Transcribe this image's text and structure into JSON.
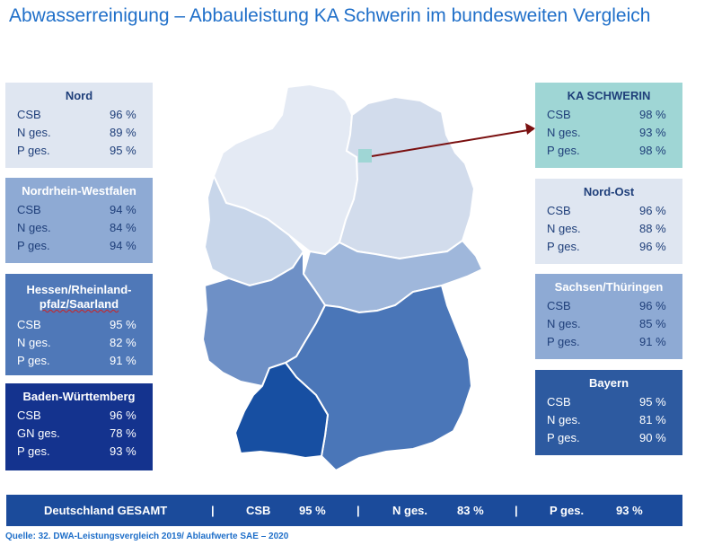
{
  "title": "Abwasserreinigung – Abbauleistung KA Schwerin im bundesweiten Vergleich",
  "regions": {
    "nord": {
      "name": "Nord",
      "rows": [
        {
          "k": "CSB",
          "v": "96 %"
        },
        {
          "k": "N ges.",
          "v": "89 %"
        },
        {
          "k": "P ges.",
          "v": "95 %"
        }
      ]
    },
    "nrw": {
      "name": "Nordrhein-Westfalen",
      "rows": [
        {
          "k": "CSB",
          "v": "94 %"
        },
        {
          "k": "N ges.",
          "v": "84 %"
        },
        {
          "k": "P ges.",
          "v": "94 %"
        }
      ]
    },
    "hessen": {
      "name_line1": "Hessen/Rheinland-",
      "name_line2": "pfalz/Saarland",
      "rows": [
        {
          "k": "CSB",
          "v": "95 %"
        },
        {
          "k": "N ges.",
          "v": "82 %"
        },
        {
          "k": "P ges.",
          "v": "91 %"
        }
      ]
    },
    "bw": {
      "name": "Baden-Württemberg",
      "rows": [
        {
          "k": "CSB",
          "v": "96 %"
        },
        {
          "k": "GN ges.",
          "v": "78 %"
        },
        {
          "k": "P ges.",
          "v": "93 %"
        }
      ]
    },
    "schwerin": {
      "name": "KA SCHWERIN",
      "rows": [
        {
          "k": "CSB",
          "v": "98 %"
        },
        {
          "k": "N ges.",
          "v": "93 %"
        },
        {
          "k": "P ges.",
          "v": "98 %"
        }
      ]
    },
    "nordost": {
      "name": "Nord-Ost",
      "rows": [
        {
          "k": "CSB",
          "v": "96 %"
        },
        {
          "k": "N ges.",
          "v": "88 %"
        },
        {
          "k": "P ges.",
          "v": "96 %"
        }
      ]
    },
    "sachsen": {
      "name": "Sachsen/Thüringen",
      "rows": [
        {
          "k": "CSB",
          "v": "96 %"
        },
        {
          "k": "N ges.",
          "v": "85 %"
        },
        {
          "k": "P ges.",
          "v": "91 %"
        }
      ]
    },
    "bayern": {
      "name": "Bayern",
      "rows": [
        {
          "k": "CSB",
          "v": "95 %"
        },
        {
          "k": "N ges.",
          "v": "81 %"
        },
        {
          "k": "P ges.",
          "v": "90 %"
        }
      ]
    }
  },
  "total": {
    "label": "Deutschland GESAMT",
    "sep": "|",
    "csb_label": "CSB",
    "csb_value": "95 %",
    "n_label": "N ges.",
    "n_value": "83 %",
    "p_label": "P ges.",
    "p_value": "93 %"
  },
  "source": "Quelle: 32. DWA-Leistungsvergleich 2019/ Ablaufwerte SAE – 2020",
  "colors": {
    "light": "#dfe6f1",
    "mid": "#8eaad4",
    "dark1": "#4f78b8",
    "dark2": "#14338e",
    "dark3": "#2d5aa0",
    "teal": "#9fd6d5",
    "arrow": "#7a1010"
  }
}
